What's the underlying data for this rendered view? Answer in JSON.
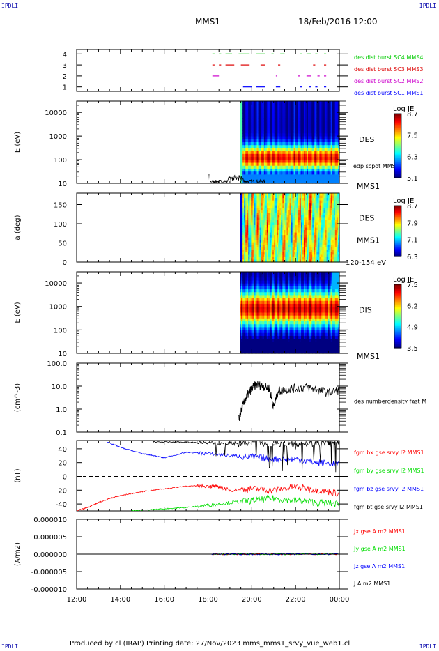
{
  "corner_tags": [
    "IPDLI",
    "IPDLI",
    "IPDLI",
    "IPDLI"
  ],
  "header": {
    "spacecraft": "MMS1",
    "datetime": "18/Feb/2016 12:00"
  },
  "footer": "Produced by cl (IRAP)   Printing date: 27/Nov/2023   mms_mms1_srvy_vue_web1.cl",
  "chart_data": [
    {
      "type": "scatter",
      "panel": "burst-availability",
      "ylim": [
        0.6,
        4.4
      ],
      "ytick_labels": [
        "1",
        "2",
        "3",
        "4"
      ],
      "series": [
        {
          "name": "des dist burst SC1 MMS1",
          "color": "#0000ff",
          "y": 1,
          "segments": [
            [
              19.6,
              20.0
            ],
            [
              20.2,
              20.6
            ],
            [
              21.1,
              21.3
            ],
            [
              22.2,
              22.3
            ],
            [
              22.6,
              22.7
            ],
            [
              22.9,
              23.0
            ],
            [
              23.3,
              23.4
            ]
          ]
        },
        {
          "name": "des dist burst SC2 MMS2",
          "color": "#cc00cc",
          "y": 2,
          "segments": [
            [
              18.2,
              18.5
            ],
            [
              21.1,
              21.15
            ],
            [
              22.1,
              22.2
            ],
            [
              22.5,
              22.7
            ],
            [
              23.0,
              23.1
            ],
            [
              23.3,
              23.4
            ]
          ]
        },
        {
          "name": "des dist burst SC3 MMS3",
          "color": "#dd0000",
          "y": 3,
          "segments": [
            [
              18.2,
              18.3
            ],
            [
              18.5,
              18.6
            ],
            [
              18.8,
              19.2
            ],
            [
              19.5,
              19.9
            ],
            [
              20.4,
              20.6
            ],
            [
              21.2,
              21.3
            ],
            [
              22.8,
              22.9
            ],
            [
              23.3,
              23.4
            ]
          ]
        },
        {
          "name": "des dist burst SC4 MMS4",
          "color": "#00cc00",
          "y": 4,
          "segments": [
            [
              18.2,
              18.3
            ],
            [
              18.5,
              18.6
            ],
            [
              18.8,
              19.1
            ],
            [
              19.4,
              19.9
            ],
            [
              20.2,
              20.6
            ],
            [
              20.9,
              21.0
            ],
            [
              21.3,
              21.5
            ],
            [
              22.2,
              22.3
            ],
            [
              22.5,
              22.7
            ],
            [
              22.9,
              23.0
            ],
            [
              23.3,
              23.4
            ]
          ]
        }
      ]
    },
    {
      "type": "heatmap",
      "panel": "des-energy",
      "ylabel": "E (eV)",
      "yscale": "log",
      "ylim": [
        10,
        30000
      ],
      "ytick_labels": [
        "10",
        "100",
        "1000",
        "10000"
      ],
      "label": "DES",
      "overlay_label": "edp scpot MMS1",
      "instrument_label": "MMS1",
      "colorbar": {
        "title": "Log JE",
        "min": 5.1,
        "max": 8.7,
        "tick_labels": [
          "8.7",
          "7.5",
          "6.3",
          "5.1"
        ]
      },
      "data_start_hour": 19.45
    },
    {
      "type": "heatmap",
      "panel": "des-pitch-angle",
      "ylabel": "a (deg)",
      "ylim": [
        0,
        180
      ],
      "ytick_labels": [
        "0",
        "50",
        "100",
        "150"
      ],
      "label": "DES",
      "instrument_label": "MMS1",
      "energy_label": "120-154 eV",
      "colorbar": {
        "title": "Log JE",
        "min": 6.3,
        "max": 8.7,
        "tick_labels": [
          "8.7",
          "7.9",
          "7.1",
          "6.3"
        ]
      },
      "data_start_hour": 19.45
    },
    {
      "type": "heatmap",
      "panel": "dis-energy",
      "ylabel": "E (eV)",
      "yscale": "log",
      "ylim": [
        10,
        30000
      ],
      "ytick_labels": [
        "10",
        "100",
        "1000",
        "10000"
      ],
      "label": "DIS",
      "instrument_label": "MMS1",
      "colorbar": {
        "title": "Log JE",
        "min": 3.5,
        "max": 7.5,
        "tick_labels": [
          "7.5",
          "6.2",
          "4.9",
          "3.5"
        ]
      },
      "data_start_hour": 19.45
    },
    {
      "type": "line",
      "panel": "density",
      "ylabel": "(cm^-3)",
      "yscale": "log",
      "ylim": [
        0.1,
        100
      ],
      "ytick_labels": [
        "0.1",
        "1.0",
        "10.0",
        "100.0"
      ],
      "series": [
        {
          "name": "des numberdensity fast M",
          "color": "#000000",
          "x": [
            19.4,
            19.6,
            19.8,
            20.0,
            20.2,
            20.5,
            20.8,
            21.0,
            21.2,
            21.5,
            22.0,
            22.5,
            23.0,
            23.5,
            24.0
          ],
          "y": [
            0.35,
            1.5,
            4.0,
            8.0,
            12.0,
            10.0,
            8.0,
            1.2,
            6.0,
            7.0,
            8.0,
            9.0,
            7.0,
            5.0,
            7.0
          ]
        }
      ]
    },
    {
      "type": "line",
      "panel": "magnetic-field",
      "ylabel": "(nT)",
      "ylim": [
        -50,
        52
      ],
      "ytick_labels": [
        "-40",
        "-20",
        "0",
        "20",
        "40"
      ],
      "zero_line": true,
      "series": [
        {
          "name": "fgm bx gse srvy l2 MMS1",
          "color": "#ff0000",
          "x": [
            12.0,
            12.5,
            13.0,
            13.5,
            14.0,
            15.0,
            16.0,
            17.0,
            18.0,
            18.5,
            19.0,
            20.0,
            21.0,
            22.0,
            23.0,
            24.0
          ],
          "y": [
            -50,
            -45,
            -38,
            -32,
            -28,
            -22,
            -18,
            -14,
            -14,
            -15,
            -20,
            -18,
            -20,
            -15,
            -20,
            -25
          ]
        },
        {
          "name": "fgm by gse srvy l2 MMS1",
          "color": "#00dd00",
          "x": [
            14.5,
            15.5,
            16.5,
            17.0,
            18.0,
            19.0,
            20.0,
            21.0,
            22.0,
            23.0,
            24.0
          ],
          "y": [
            -50,
            -48,
            -46,
            -45,
            -42,
            -38,
            -35,
            -32,
            -35,
            -38,
            -40
          ]
        },
        {
          "name": "fgm bz gse srvy l2 MMS1",
          "color": "#0000ff",
          "x": [
            13.4,
            14.0,
            15.0,
            15.5,
            16.0,
            17.0,
            18.0,
            19.0,
            20.0,
            21.0,
            22.0,
            23.0,
            24.0
          ],
          "y": [
            50,
            42,
            33,
            30,
            27,
            35,
            33,
            30,
            28,
            25,
            25,
            20,
            18
          ]
        },
        {
          "name": "fgm bt gse srvy l2 MMS1",
          "color": "#000000",
          "x": [
            15.5,
            16.5,
            17.5,
            18.5,
            19.5,
            20.5,
            21.5,
            22.5,
            23.5,
            24.0
          ],
          "y": [
            50,
            50,
            49,
            48,
            48,
            48,
            48,
            48,
            48,
            48
          ]
        }
      ]
    },
    {
      "type": "line",
      "panel": "current-density",
      "ylabel": "(A/m2)",
      "ylim": [
        -0.0001,
        0.0001
      ],
      "ytick_labels": [
        "-0.000010",
        "-0.000005",
        "0.000000",
        "0.000005",
        "0.000010"
      ],
      "xtick_labels": [
        "12:00",
        "14:00",
        "16:00",
        "18:00",
        "20:00",
        "22:00",
        "00:00"
      ],
      "series": [
        {
          "name": "Jx gse A m2 MMS1",
          "color": "#ff0000",
          "x": [
            12,
            24
          ],
          "y": [
            0,
            0
          ]
        },
        {
          "name": "Jy gse A m2 MMS1",
          "color": "#00dd00",
          "x": [
            12,
            24
          ],
          "y": [
            0,
            0
          ]
        },
        {
          "name": "Jz gse A m2 MMS1",
          "color": "#0000ff",
          "x": [
            12,
            24
          ],
          "y": [
            0,
            0
          ]
        },
        {
          "name": "J A m2 MMS1",
          "color": "#000000",
          "x": [
            12,
            24
          ],
          "y": [
            0,
            0
          ]
        }
      ]
    }
  ]
}
